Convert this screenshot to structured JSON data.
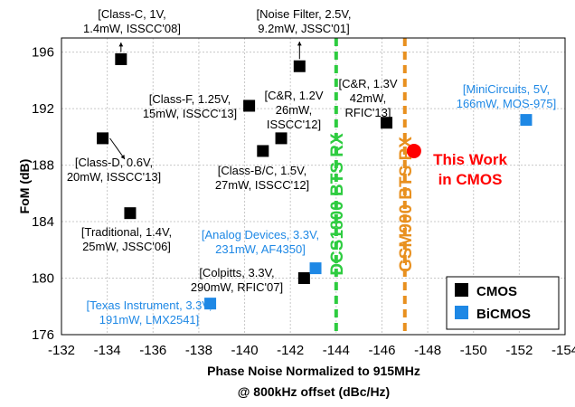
{
  "chart_data": {
    "type": "scatter",
    "xlabel_line1": "Phase Noise Normalized to 915MHz",
    "xlabel_line2": "@ 800kHz offset (dBc/Hz)",
    "ylabel": "FoM (dB)",
    "xlim": [
      -132,
      -154
    ],
    "ylim": [
      176,
      197
    ],
    "x_ticks": [
      -132,
      -134,
      -136,
      -138,
      -140,
      -142,
      -144,
      -146,
      -148,
      -150,
      -152,
      -154
    ],
    "y_ticks": [
      176,
      180,
      184,
      188,
      192,
      196
    ],
    "colors": {
      "cmos": "#000000",
      "bicmos": "#1e88e5",
      "ti": "#1e88e5",
      "dcs": "#2ecc40",
      "gsm": "#e8901f",
      "thiswork": "#ff0000"
    },
    "legend": [
      {
        "label": "CMOS",
        "color": "#000000"
      },
      {
        "label": "BiCMOS",
        "color": "#1e88e5"
      }
    ],
    "series": [
      {
        "name": "CMOS",
        "color": "#000000",
        "points": [
          {
            "x": -134.6,
            "y": 195.5,
            "label": [
              "[Class-C, 1V,",
              "1.4mW, ISSCC'08]"
            ]
          },
          {
            "x": -142.4,
            "y": 195.0,
            "label": [
              "[Noise Filter, 2.5V,",
              "9.2mW, JSSC'01]"
            ]
          },
          {
            "x": -140.2,
            "y": 192.2,
            "label": [
              "[Class-F, 1.25V,",
              "15mW, ISSCC'13]"
            ]
          },
          {
            "x": -141.6,
            "y": 189.9,
            "label": [
              "[C&R, 1.2V",
              "26mW,",
              "ISSCC'12]"
            ]
          },
          {
            "x": -146.2,
            "y": 191.0,
            "label": [
              "[C&R, 1.3V",
              "42mW,",
              "RFIC'13]"
            ]
          },
          {
            "x": -133.8,
            "y": 189.9,
            "label": [
              "[Class-D, 0.6V,",
              "20mW, ISSCC'13]"
            ]
          },
          {
            "x": -140.8,
            "y": 189.0,
            "label": [
              "[Class-B/C, 1.5V,",
              "27mW, ISSCC'12]"
            ]
          },
          {
            "x": -135.0,
            "y": 184.6,
            "label": [
              "[Traditional, 1.4V,",
              "25mW, JSSC'06]"
            ]
          },
          {
            "x": -142.6,
            "y": 180.0,
            "label": [
              "[Colpitts, 3.3V,",
              "290mW, RFIC'07]"
            ]
          }
        ]
      },
      {
        "name": "BiCMOS",
        "color": "#1e88e5",
        "points": [
          {
            "x": -143.1,
            "y": 180.7,
            "label": [
              "[Analog Devices, 3.3V,",
              "231mW, AF4350]"
            ]
          },
          {
            "x": -138.5,
            "y": 178.2,
            "label": [
              "[Texas Instrument, 3.3V,",
              "191mW, LMX2541]"
            ]
          },
          {
            "x": -152.3,
            "y": 191.2,
            "label": [
              "[MiniCircuits, 5V,",
              "166mW, MOS-975]"
            ]
          }
        ]
      }
    ],
    "this_work": {
      "x": -147.4,
      "y": 189.0,
      "label": [
        "This Work",
        "in CMOS"
      ]
    },
    "vlines": [
      {
        "x": -144.0,
        "label": "DCS1800 BTS RX",
        "color": "#2ecc40"
      },
      {
        "x": -147.0,
        "label": "GSM900 BTS RX",
        "color": "#e8901f"
      }
    ]
  }
}
